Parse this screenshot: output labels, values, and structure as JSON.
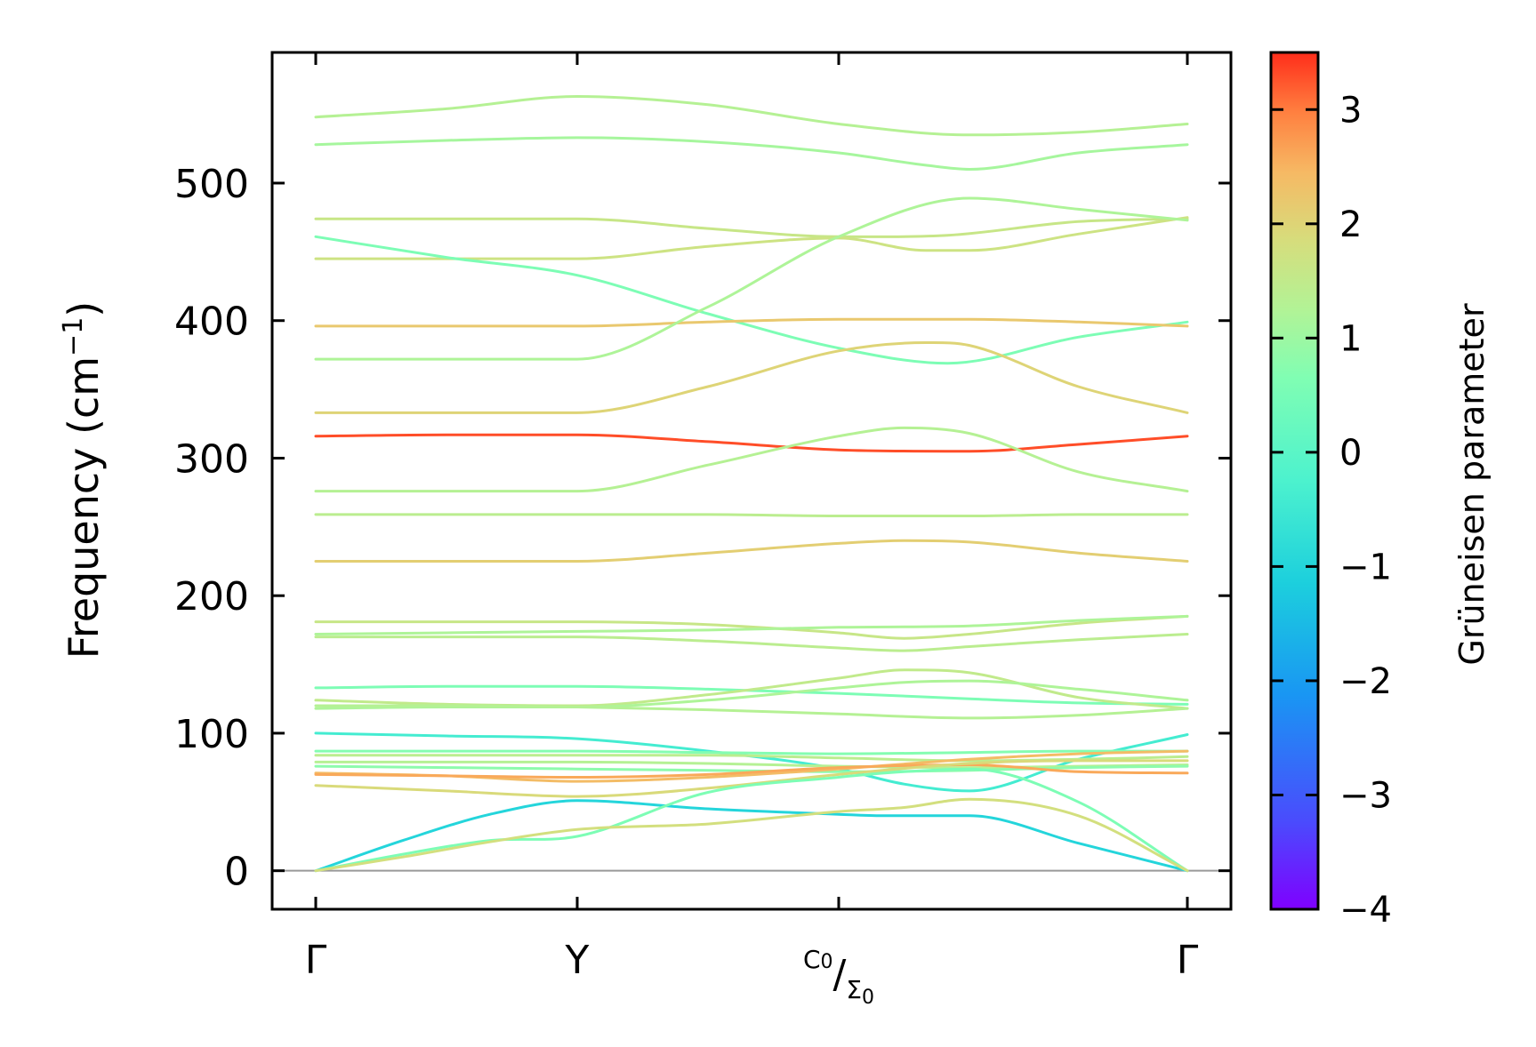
{
  "chart_data": {
    "type": "line",
    "title": "",
    "ylabel": {
      "text": "Frequency (cm",
      "sup": "−1",
      "close": ")"
    },
    "xlabel": "",
    "ylim": [
      -28,
      595
    ],
    "yticks": [
      {
        "value": 0,
        "label": "0"
      },
      {
        "value": 100,
        "label": "100"
      },
      {
        "value": 200,
        "label": "200"
      },
      {
        "value": 300,
        "label": "300"
      },
      {
        "value": 400,
        "label": "400"
      },
      {
        "value": 500,
        "label": "500"
      }
    ],
    "xlim": [
      -0.2,
      4.2
    ],
    "xticks": [
      {
        "pos": 0,
        "label": "Γ"
      },
      {
        "pos": 1.2,
        "label": "Y"
      },
      {
        "pos": 2.4,
        "label": "C",
        "sub1": "0",
        "slash": "/",
        "label2": "Σ",
        "sub2": "0"
      },
      {
        "pos": 4.0,
        "label": "Γ"
      }
    ],
    "zero_line": 0,
    "colorbar": {
      "title": "Grüneisen parameter",
      "range": [
        -4,
        3.5
      ],
      "ticks": [
        {
          "value": 3,
          "label": "3"
        },
        {
          "value": 2,
          "label": "2"
        },
        {
          "value": 1,
          "label": "1"
        },
        {
          "value": 0,
          "label": "0"
        },
        {
          "value": -1,
          "label": "−1"
        },
        {
          "value": -2,
          "label": "−2"
        },
        {
          "value": -3,
          "label": "−3"
        },
        {
          "value": -4,
          "label": "−4"
        }
      ],
      "colormap": "rainbow"
    },
    "branches": [
      {
        "points": [
          [
            0,
            548
          ],
          [
            0.6,
            554
          ],
          [
            1.2,
            563
          ],
          [
            1.8,
            557
          ],
          [
            2.4,
            543
          ],
          [
            3.0,
            535
          ],
          [
            3.5,
            537
          ],
          [
            4.0,
            543
          ]
        ],
        "gamma": 1.3
      },
      {
        "points": [
          [
            0,
            528
          ],
          [
            0.6,
            531
          ],
          [
            1.2,
            533
          ],
          [
            1.8,
            530
          ],
          [
            2.4,
            522
          ],
          [
            2.8,
            513
          ],
          [
            3.0,
            510
          ],
          [
            3.5,
            522
          ],
          [
            4.0,
            528
          ]
        ],
        "gamma": 1.1
      },
      {
        "points": [
          [
            0,
            474
          ],
          [
            0.6,
            474
          ],
          [
            1.2,
            474
          ],
          [
            1.8,
            467
          ],
          [
            2.4,
            461
          ],
          [
            2.9,
            462
          ],
          [
            3.5,
            472
          ],
          [
            4.0,
            474
          ]
        ],
        "gamma": 1.6
      },
      {
        "points": [
          [
            0,
            445
          ],
          [
            0.6,
            445
          ],
          [
            1.2,
            445
          ],
          [
            1.8,
            454
          ],
          [
            2.4,
            460
          ],
          [
            2.8,
            451
          ],
          [
            3.0,
            451
          ],
          [
            3.5,
            463
          ],
          [
            4.0,
            475
          ]
        ],
        "gamma": 1.7
      },
      {
        "points": [
          [
            0,
            461
          ],
          [
            0.6,
            446
          ],
          [
            1.2,
            433
          ],
          [
            1.8,
            405
          ],
          [
            2.4,
            380
          ],
          [
            2.9,
            369
          ],
          [
            3.5,
            388
          ],
          [
            4.0,
            399
          ]
        ],
        "gamma": 0.6
      },
      {
        "points": [
          [
            0,
            396
          ],
          [
            0.6,
            396
          ],
          [
            1.2,
            396
          ],
          [
            1.8,
            399
          ],
          [
            2.4,
            401
          ],
          [
            3.0,
            401
          ],
          [
            3.5,
            399
          ],
          [
            4.0,
            396
          ]
        ],
        "gamma": 2.2
      },
      {
        "points": [
          [
            0,
            372
          ],
          [
            0.6,
            372
          ],
          [
            1.2,
            372
          ],
          [
            1.8,
            410
          ],
          [
            2.4,
            461
          ],
          [
            3.0,
            489
          ],
          [
            3.5,
            481
          ],
          [
            4.0,
            473
          ]
        ],
        "gamma": 1.2
      },
      {
        "points": [
          [
            0,
            333
          ],
          [
            0.6,
            333
          ],
          [
            1.2,
            333
          ],
          [
            1.8,
            352
          ],
          [
            2.4,
            378
          ],
          [
            2.8,
            384
          ],
          [
            3.0,
            382
          ],
          [
            3.5,
            352
          ],
          [
            4.0,
            333
          ]
        ],
        "gamma": 2.0
      },
      {
        "points": [
          [
            0,
            316
          ],
          [
            0.6,
            317
          ],
          [
            1.2,
            317
          ],
          [
            1.8,
            312
          ],
          [
            2.4,
            306
          ],
          [
            3.0,
            305
          ],
          [
            3.5,
            310
          ],
          [
            4.0,
            316
          ]
        ],
        "gamma": 3.3
      },
      {
        "points": [
          [
            0,
            276
          ],
          [
            0.6,
            276
          ],
          [
            1.2,
            276
          ],
          [
            1.8,
            295
          ],
          [
            2.4,
            316
          ],
          [
            2.7,
            322
          ],
          [
            3.0,
            318
          ],
          [
            3.5,
            290
          ],
          [
            4.0,
            276
          ]
        ],
        "gamma": 1.3
      },
      {
        "points": [
          [
            0,
            259
          ],
          [
            0.6,
            259
          ],
          [
            1.2,
            259
          ],
          [
            1.8,
            259
          ],
          [
            2.4,
            258
          ],
          [
            3.0,
            258
          ],
          [
            3.5,
            259
          ],
          [
            4.0,
            259
          ]
        ],
        "gamma": 1.4
      },
      {
        "points": [
          [
            0,
            225
          ],
          [
            0.6,
            225
          ],
          [
            1.2,
            225
          ],
          [
            1.8,
            231
          ],
          [
            2.4,
            238
          ],
          [
            2.7,
            240
          ],
          [
            3.0,
            239
          ],
          [
            3.5,
            231
          ],
          [
            4.0,
            225
          ]
        ],
        "gamma": 2.1
      },
      {
        "points": [
          [
            0,
            181
          ],
          [
            0.6,
            181
          ],
          [
            1.2,
            181
          ],
          [
            1.8,
            179
          ],
          [
            2.4,
            173
          ],
          [
            2.7,
            169
          ],
          [
            3.0,
            172
          ],
          [
            3.5,
            180
          ],
          [
            4.0,
            185
          ]
        ],
        "gamma": 1.6
      },
      {
        "points": [
          [
            0,
            172
          ],
          [
            0.6,
            173
          ],
          [
            1.2,
            174
          ],
          [
            1.8,
            175
          ],
          [
            2.4,
            177
          ],
          [
            3.0,
            178
          ],
          [
            3.5,
            182
          ],
          [
            4.0,
            185
          ]
        ],
        "gamma": 1.2
      },
      {
        "points": [
          [
            0,
            170
          ],
          [
            0.6,
            170
          ],
          [
            1.2,
            170
          ],
          [
            1.8,
            167
          ],
          [
            2.4,
            162
          ],
          [
            2.7,
            160
          ],
          [
            3.0,
            163
          ],
          [
            3.5,
            168
          ],
          [
            4.0,
            172
          ]
        ],
        "gamma": 1.4
      },
      {
        "points": [
          [
            0,
            133
          ],
          [
            0.6,
            134
          ],
          [
            1.2,
            134
          ],
          [
            1.8,
            132
          ],
          [
            2.4,
            129
          ],
          [
            3.0,
            125
          ],
          [
            3.5,
            122
          ],
          [
            4.0,
            121
          ]
        ],
        "gamma": 0.6
      },
      {
        "points": [
          [
            0,
            124
          ],
          [
            0.6,
            121
          ],
          [
            1.2,
            120
          ],
          [
            1.8,
            128
          ],
          [
            2.4,
            140
          ],
          [
            2.7,
            146
          ],
          [
            3.0,
            144
          ],
          [
            3.5,
            126
          ],
          [
            4.0,
            118
          ]
        ],
        "gamma": 1.5
      },
      {
        "points": [
          [
            0,
            118
          ],
          [
            0.6,
            119
          ],
          [
            1.2,
            119
          ],
          [
            1.8,
            124
          ],
          [
            2.4,
            133
          ],
          [
            2.7,
            137
          ],
          [
            3.0,
            138
          ],
          [
            3.5,
            132
          ],
          [
            4.0,
            124
          ]
        ],
        "gamma": 1.2
      },
      {
        "points": [
          [
            0,
            120
          ],
          [
            0.6,
            120
          ],
          [
            1.2,
            119
          ],
          [
            1.8,
            117
          ],
          [
            2.4,
            114
          ],
          [
            3.0,
            111
          ],
          [
            3.5,
            113
          ],
          [
            4.0,
            118
          ]
        ],
        "gamma": 1.3
      },
      {
        "points": [
          [
            0,
            100
          ],
          [
            0.6,
            98
          ],
          [
            1.2,
            96
          ],
          [
            1.8,
            87
          ],
          [
            2.4,
            74
          ],
          [
            2.7,
            63
          ],
          [
            3.0,
            58
          ],
          [
            3.5,
            81
          ],
          [
            4.0,
            99
          ]
        ],
        "gamma": -0.4
      },
      {
        "points": [
          [
            0,
            87
          ],
          [
            0.6,
            87
          ],
          [
            1.2,
            87
          ],
          [
            1.8,
            86
          ],
          [
            2.4,
            85
          ],
          [
            3.0,
            86
          ],
          [
            3.5,
            87
          ],
          [
            4.0,
            87
          ]
        ],
        "gamma": 0.7
      },
      {
        "points": [
          [
            0,
            84
          ],
          [
            0.6,
            84
          ],
          [
            1.2,
            84
          ],
          [
            1.8,
            84
          ],
          [
            2.4,
            82
          ],
          [
            3.0,
            80
          ],
          [
            3.5,
            81
          ],
          [
            4.0,
            83
          ]
        ],
        "gamma": 1.4
      },
      {
        "points": [
          [
            0,
            79
          ],
          [
            0.6,
            79
          ],
          [
            1.2,
            79
          ],
          [
            1.8,
            78
          ],
          [
            2.4,
            76
          ],
          [
            3.0,
            75
          ],
          [
            3.5,
            76
          ],
          [
            4.0,
            77
          ]
        ],
        "gamma": 1.3
      },
      {
        "points": [
          [
            0,
            76
          ],
          [
            0.6,
            75
          ],
          [
            1.2,
            74
          ],
          [
            1.8,
            73
          ],
          [
            2.4,
            72
          ],
          [
            3.0,
            73
          ],
          [
            3.5,
            75
          ],
          [
            4.0,
            76
          ]
        ],
        "gamma": 0.8
      },
      {
        "points": [
          [
            0,
            71
          ],
          [
            0.6,
            69
          ],
          [
            1.2,
            65
          ],
          [
            1.8,
            68
          ],
          [
            2.4,
            74
          ],
          [
            3.0,
            81
          ],
          [
            3.5,
            85
          ],
          [
            4.0,
            87
          ]
        ],
        "gamma": 2.4
      },
      {
        "points": [
          [
            0,
            70
          ],
          [
            0.6,
            69
          ],
          [
            1.2,
            68
          ],
          [
            1.8,
            70
          ],
          [
            2.4,
            75
          ],
          [
            3.0,
            77
          ],
          [
            3.5,
            72
          ],
          [
            4.0,
            71
          ]
        ],
        "gamma": 2.6
      },
      {
        "points": [
          [
            0,
            62
          ],
          [
            0.6,
            58
          ],
          [
            1.2,
            54
          ],
          [
            1.8,
            60
          ],
          [
            2.4,
            70
          ],
          [
            3.0,
            78
          ],
          [
            3.5,
            80
          ],
          [
            4.0,
            80
          ]
        ],
        "gamma": 1.9
      },
      {
        "points": [
          [
            0,
            0
          ],
          [
            0.4,
            22
          ],
          [
            0.8,
            41
          ],
          [
            1.2,
            51
          ],
          [
            1.8,
            45
          ],
          [
            2.4,
            41
          ],
          [
            2.6,
            40
          ],
          [
            3.0,
            40
          ],
          [
            3.5,
            20
          ],
          [
            4.0,
            0
          ]
        ],
        "gamma": -1.0
      },
      {
        "points": [
          [
            0,
            0
          ],
          [
            0.4,
            12
          ],
          [
            0.8,
            22
          ],
          [
            1.2,
            25
          ],
          [
            1.8,
            57
          ],
          [
            2.4,
            68
          ],
          [
            2.7,
            72
          ],
          [
            3.0,
            74
          ],
          [
            3.5,
            50
          ],
          [
            4.0,
            0
          ]
        ],
        "gamma": 0.6
      },
      {
        "points": [
          [
            0,
            0
          ],
          [
            0.4,
            10
          ],
          [
            0.8,
            21
          ],
          [
            1.2,
            30
          ],
          [
            1.8,
            34
          ],
          [
            2.4,
            43
          ],
          [
            2.7,
            46
          ],
          [
            3.0,
            52
          ],
          [
            3.5,
            40
          ],
          [
            4.0,
            0
          ]
        ],
        "gamma": 1.8
      }
    ]
  }
}
